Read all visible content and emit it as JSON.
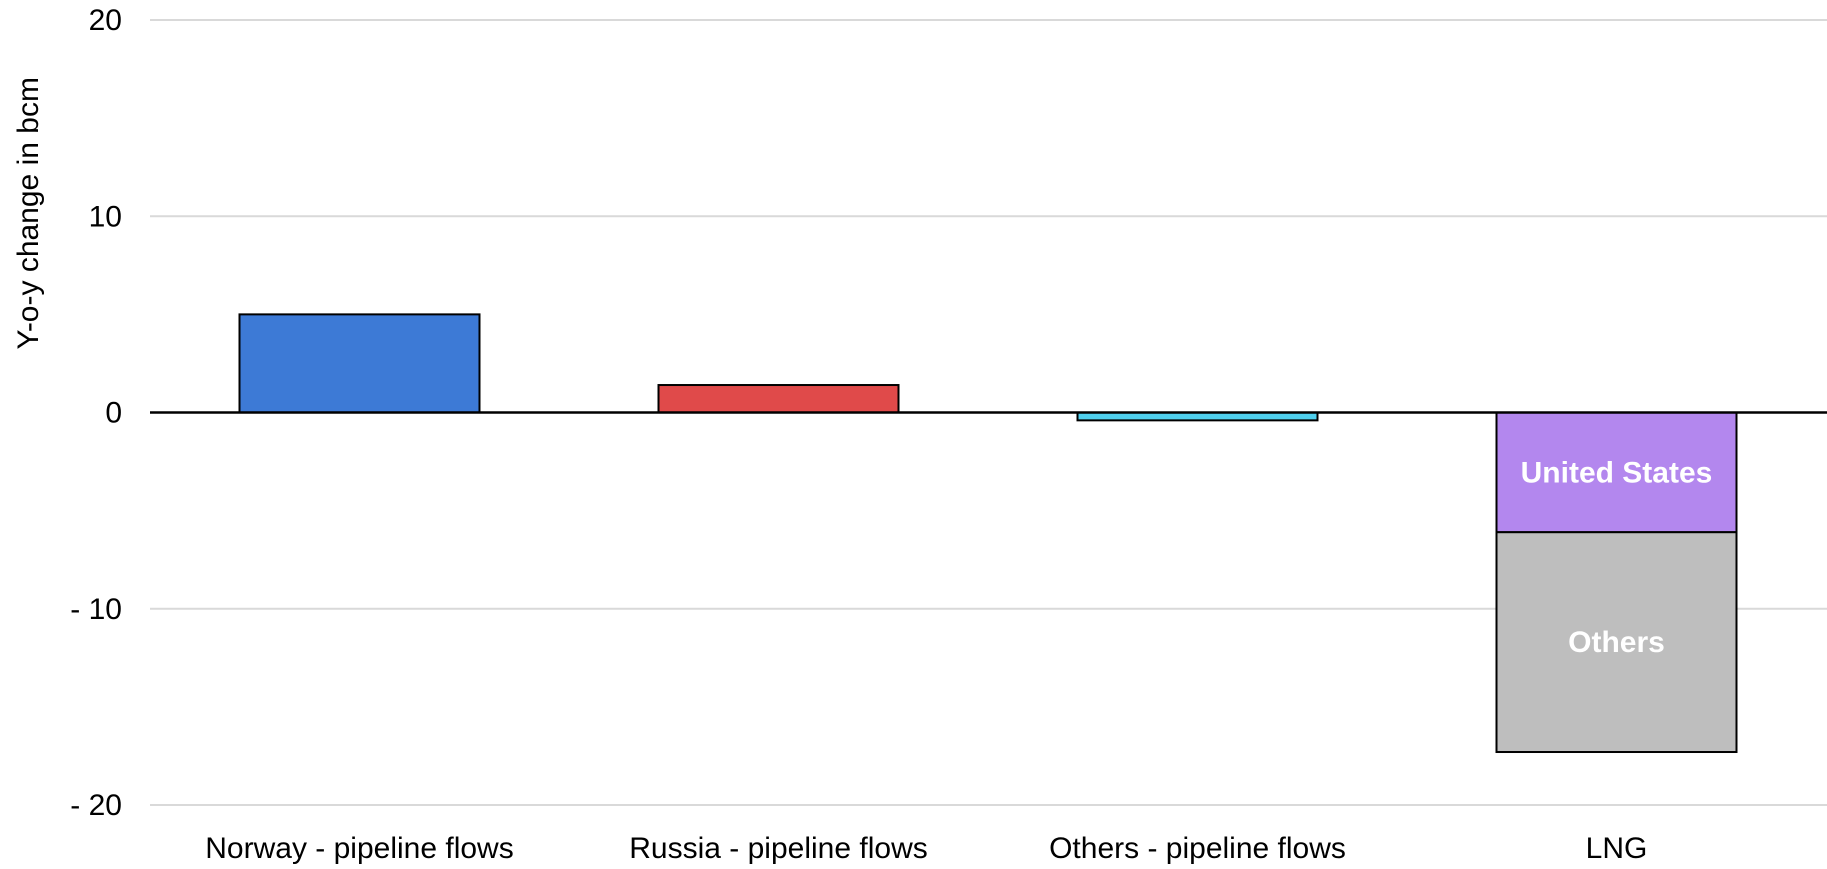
{
  "chart_data": {
    "type": "bar",
    "stacked": true,
    "title": "",
    "xlabel": "",
    "ylabel": "Y-o-y change in bcm",
    "ylim": [
      -20,
      20
    ],
    "yticks": [
      20,
      10,
      0,
      -10,
      -20
    ],
    "ytick_labels": [
      "20",
      "10",
      "0",
      "- 10",
      "- 20"
    ],
    "grid": true,
    "legend": "none",
    "categories": [
      "Norway - pipeline flows",
      "Russia - pipeline flows",
      "Others - pipeline flows",
      "LNG"
    ],
    "bars": [
      {
        "category": "Norway - pipeline flows",
        "segments": [
          {
            "label": "",
            "value": 5.0,
            "color": "#3d7ad6"
          }
        ]
      },
      {
        "category": "Russia - pipeline flows",
        "segments": [
          {
            "label": "",
            "value": 1.4,
            "color": "#e04a4a"
          }
        ]
      },
      {
        "category": "Others - pipeline flows",
        "segments": [
          {
            "label": "",
            "value": -0.4,
            "color": "#4fd0ee"
          }
        ]
      },
      {
        "category": "LNG",
        "segments": [
          {
            "label": "United States",
            "value": -6.1,
            "color": "#b387ee"
          },
          {
            "label": "Others",
            "value": -11.2,
            "color": "#bebebe"
          }
        ]
      }
    ]
  }
}
